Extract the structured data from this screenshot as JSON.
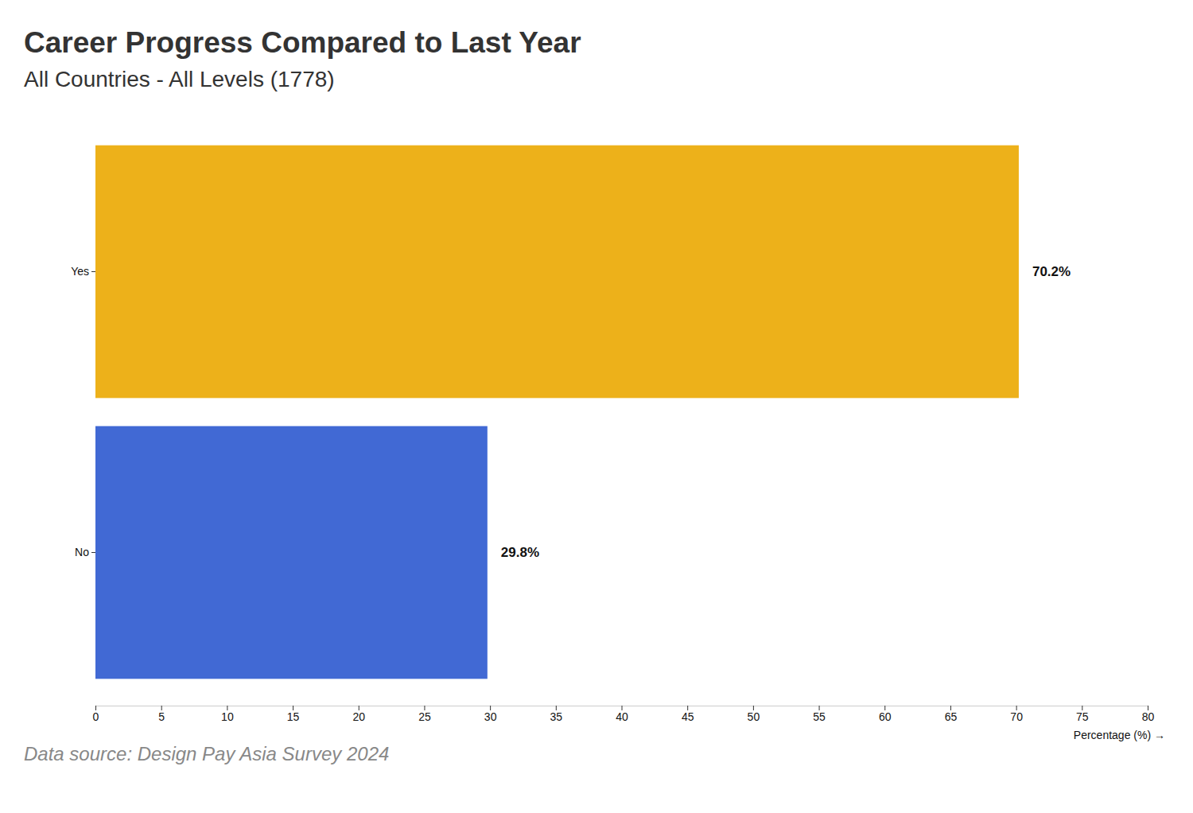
{
  "chart_data": {
    "type": "bar",
    "title": "Career Progress Compared to Last Year",
    "subtitle": "All Countries - All Levels (1778)",
    "orientation": "horizontal",
    "categories": [
      "Yes",
      "No"
    ],
    "values": [
      70.2,
      29.8
    ],
    "value_labels": [
      "70.2%",
      "29.8%"
    ],
    "data_labels": true,
    "colors": [
      "#edb11a",
      "#4169d4"
    ],
    "xlim": [
      0,
      80
    ],
    "xticks": [
      0,
      5,
      10,
      15,
      20,
      25,
      30,
      35,
      40,
      45,
      50,
      55,
      60,
      65,
      70,
      75,
      80
    ],
    "x_label": "Percentage (%) →",
    "source": "Data source: Design Pay Asia Survey 2024"
  }
}
